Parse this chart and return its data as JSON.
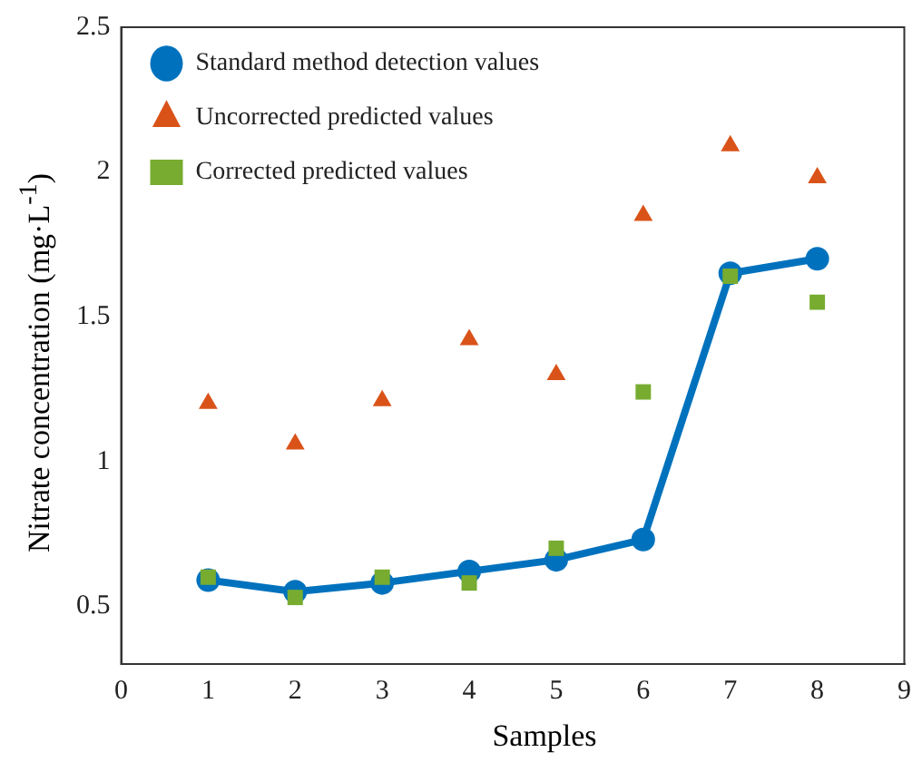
{
  "chart_data": {
    "type": "line",
    "xlabel": "Samples",
    "ylabel": "Nitrate concentration (mg·L$^{-1}$)",
    "x": [
      1,
      2,
      3,
      4,
      5,
      6,
      7,
      8
    ],
    "xlim": [
      0,
      9
    ],
    "xticks": [
      0,
      1,
      2,
      3,
      4,
      5,
      6,
      7,
      8,
      9
    ],
    "ylim": [
      0.3,
      2.5
    ],
    "yticks": [
      0.5,
      1,
      1.5,
      2,
      2.5
    ],
    "grid": false,
    "legend": "top left",
    "series": [
      {
        "name": "Standard method detection values",
        "type": "line",
        "marker": "circle",
        "color": "#0072bd",
        "values": [
          0.59,
          0.55,
          0.58,
          0.62,
          0.66,
          0.73,
          1.65,
          1.7
        ]
      },
      {
        "name": "Uncorrected predicted values",
        "type": "scatter",
        "marker": "triangle",
        "color": "#d95319",
        "values": [
          1.2,
          1.06,
          1.21,
          1.42,
          1.3,
          1.85,
          2.09,
          1.98
        ]
      },
      {
        "name": "Corrected predicted values",
        "type": "scatter",
        "marker": "square",
        "color": "#77ac30",
        "values": [
          0.6,
          0.53,
          0.6,
          0.58,
          0.7,
          1.24,
          1.64,
          1.55
        ]
      }
    ]
  }
}
